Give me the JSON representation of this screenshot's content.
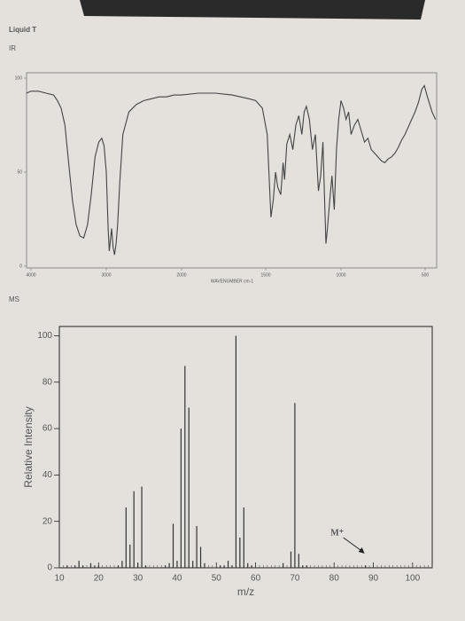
{
  "header": {
    "title": "Liquid T"
  },
  "chart_data": [
    {
      "type": "line",
      "title": "IR",
      "x_label": "WAVENUMBER cm-1",
      "color": "#444444",
      "x": [
        4050,
        4000,
        3900,
        3800,
        3700,
        3650,
        3600,
        3550,
        3500,
        3450,
        3400,
        3350,
        3300,
        3250,
        3200,
        3150,
        3100,
        3060,
        3030,
        3000,
        2975,
        2960,
        2945,
        2930,
        2910,
        2890,
        2870,
        2850,
        2820,
        2780,
        2700,
        2600,
        2500,
        2400,
        2300,
        2200,
        2100,
        2000,
        1900,
        1800,
        1700,
        1650,
        1600,
        1560,
        1520,
        1490,
        1465,
        1450,
        1435,
        1420,
        1400,
        1385,
        1375,
        1360,
        1340,
        1320,
        1300,
        1280,
        1260,
        1245,
        1230,
        1210,
        1190,
        1170,
        1150,
        1135,
        1120,
        1110,
        1100,
        1090,
        1075,
        1060,
        1045,
        1030,
        1015,
        1000,
        985,
        970,
        955,
        940,
        920,
        900,
        880,
        860,
        840,
        820,
        800,
        780,
        760,
        740,
        720,
        700,
        680,
        660,
        640,
        620,
        600,
        580,
        560,
        540,
        520,
        505,
        490,
        470,
        455
      ],
      "values": [
        92,
        93,
        93,
        92,
        91,
        88,
        84,
        75,
        55,
        35,
        22,
        16,
        15,
        22,
        38,
        58,
        66,
        68,
        64,
        50,
        20,
        8,
        14,
        20,
        10,
        6,
        12,
        22,
        45,
        70,
        82,
        86,
        88,
        89,
        90,
        90,
        91,
        91,
        92,
        92,
        91,
        90,
        89,
        88,
        84,
        70,
        26,
        35,
        50,
        42,
        38,
        55,
        46,
        65,
        70,
        62,
        75,
        80,
        70,
        82,
        85,
        78,
        62,
        70,
        40,
        48,
        66,
        38,
        12,
        20,
        35,
        48,
        30,
        62,
        78,
        88,
        84,
        78,
        82,
        70,
        75,
        78,
        72,
        66,
        68,
        62,
        60,
        58,
        56,
        55,
        57,
        58,
        60,
        63,
        67,
        70,
        74,
        78,
        82,
        87,
        94,
        96,
        90,
        82,
        78
      ],
      "xlim": [
        4050,
        450
      ],
      "ylim": [
        0,
        100
      ],
      "xticks": [
        4000,
        3000,
        2000,
        1500,
        1000,
        500
      ],
      "yticks": [
        0,
        50,
        100
      ]
    },
    {
      "type": "bar",
      "title": "MS",
      "x_label": "m/z",
      "y_label": "Relative Intensity",
      "color": "#333333",
      "annotation": "M⁺",
      "annotation_x": 88,
      "x": [
        12,
        14,
        15,
        16,
        18,
        19,
        20,
        25,
        26,
        27,
        28,
        29,
        30,
        31,
        32,
        37,
        38,
        39,
        40,
        41,
        42,
        43,
        44,
        45,
        46,
        47,
        51,
        52,
        53,
        54,
        55,
        56,
        57,
        58,
        59,
        67,
        69,
        70,
        71,
        72,
        73,
        88
      ],
      "values": [
        1,
        1,
        3,
        1,
        2,
        1,
        1,
        1,
        3,
        26,
        10,
        33,
        2,
        35,
        1,
        1,
        2,
        19,
        3,
        60,
        87,
        69,
        3,
        18,
        9,
        2,
        1,
        1,
        3,
        1,
        100,
        13,
        26,
        2,
        1,
        2,
        7,
        71,
        6,
        1,
        1,
        1
      ],
      "xlim": [
        10,
        105
      ],
      "ylim": [
        0,
        104
      ],
      "xticks": [
        10,
        20,
        30,
        40,
        50,
        60,
        70,
        80,
        90,
        100
      ],
      "yticks": [
        0,
        20,
        40,
        60,
        80,
        100
      ]
    }
  ]
}
